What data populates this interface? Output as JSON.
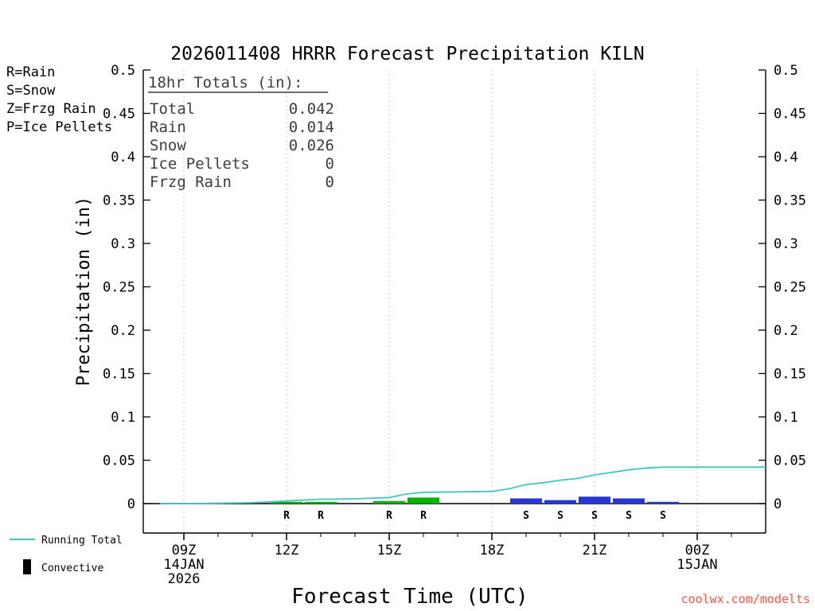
{
  "title": "2026011408 HRRR Forecast Precipitation KILN",
  "legend": {
    "rain": {
      "label": "R=Rain",
      "color": "#00b400"
    },
    "snow": {
      "label": "S=Snow",
      "color": "#2222ee"
    },
    "frzg_rain": {
      "label": "Z=Frzg Rain",
      "color": "#ff9900"
    },
    "ice_pellets": {
      "label": "P=Ice Pellets",
      "color": "#ee00aa"
    }
  },
  "totals_box": {
    "heading": " 18hr Totals (in):",
    "rows": [
      {
        "label": "Total",
        "value": "0.042"
      },
      {
        "label": "Rain",
        "value": "0.014"
      },
      {
        "label": "Snow",
        "value": "0.026"
      },
      {
        "label": "Ice Pellets",
        "value": "0"
      },
      {
        "label": "Frzg Rain",
        "value": "0"
      }
    ]
  },
  "axes": {
    "ylabel": "Precipitation (in)",
    "xlabel": "Forecast Time (UTC)",
    "yticks": [
      {
        "value": 0,
        "label": "0"
      },
      {
        "value": 0.05,
        "label": "0.05"
      },
      {
        "value": 0.1,
        "label": "0.1"
      },
      {
        "value": 0.15,
        "label": "0.15"
      },
      {
        "value": 0.2,
        "label": "0.2"
      },
      {
        "value": 0.25,
        "label": "0.25"
      },
      {
        "value": 0.3,
        "label": "0.3"
      },
      {
        "value": 0.35,
        "label": "0.35"
      },
      {
        "value": 0.4,
        "label": "0.4"
      },
      {
        "value": 0.45,
        "label": "0.45"
      },
      {
        "value": 0.5,
        "label": "0.5"
      }
    ],
    "xticks": [
      {
        "hour": 9,
        "label": "09Z",
        "sub": [
          "14JAN",
          "2026"
        ]
      },
      {
        "hour": 12,
        "label": "12Z",
        "sub": []
      },
      {
        "hour": 15,
        "label": "15Z",
        "sub": []
      },
      {
        "hour": 18,
        "label": "18Z",
        "sub": []
      },
      {
        "hour": 21,
        "label": "21Z",
        "sub": []
      },
      {
        "hour": 24,
        "label": "00Z",
        "sub": [
          "15JAN"
        ]
      }
    ]
  },
  "bottom_legend": {
    "running_total": "Running Total",
    "convective": "Convective"
  },
  "watermark": "coolwx.com/modelts",
  "chart_data": {
    "type": "bar",
    "title": "2026011408 HRRR Forecast Precipitation KILN",
    "xlabel": "Forecast Time (UTC)",
    "ylabel": "Precipitation (in)",
    "ylim": [
      0,
      0.5
    ],
    "x_axis": {
      "start_hour": 8,
      "end_hour": 26,
      "tick_hours": [
        9,
        12,
        15,
        18,
        21,
        24
      ],
      "tick_labels": [
        "09Z",
        "12Z",
        "15Z",
        "18Z",
        "21Z",
        "00Z"
      ]
    },
    "grid": "vertical-dotted",
    "legend_position": "top-left",
    "series": [
      {
        "name": "Rain (convective)",
        "type": "bar",
        "marker": "R",
        "color": "#00b400",
        "points": [
          {
            "hour": 12,
            "value": 0.002
          },
          {
            "hour": 13,
            "value": 0.002
          },
          {
            "hour": 15,
            "value": 0.003
          },
          {
            "hour": 16,
            "value": 0.007
          }
        ]
      },
      {
        "name": "Snow (convective)",
        "type": "bar",
        "marker": "S",
        "color": "#2636d8",
        "points": [
          {
            "hour": 19,
            "value": 0.006
          },
          {
            "hour": 20,
            "value": 0.004
          },
          {
            "hour": 21,
            "value": 0.008
          },
          {
            "hour": 22,
            "value": 0.006
          },
          {
            "hour": 23,
            "value": 0.002
          }
        ]
      },
      {
        "name": "Running Total",
        "type": "line",
        "color": "#3fc6c6",
        "points": [
          [
            8.3,
            0
          ],
          [
            9,
            0
          ],
          [
            10,
            0.0005
          ],
          [
            11,
            0.001
          ],
          [
            11.5,
            0.002
          ],
          [
            12,
            0.003
          ],
          [
            12.5,
            0.004
          ],
          [
            13,
            0.005
          ],
          [
            14,
            0.0055
          ],
          [
            15,
            0.007
          ],
          [
            15.5,
            0.011
          ],
          [
            16,
            0.013
          ],
          [
            17,
            0.0135
          ],
          [
            18,
            0.014
          ],
          [
            18.5,
            0.017
          ],
          [
            19,
            0.022
          ],
          [
            19.5,
            0.024
          ],
          [
            20,
            0.027
          ],
          [
            20.5,
            0.029
          ],
          [
            21,
            0.033
          ],
          [
            21.5,
            0.036
          ],
          [
            22,
            0.039
          ],
          [
            22.5,
            0.041
          ],
          [
            23,
            0.042
          ],
          [
            24,
            0.042
          ],
          [
            25,
            0.042
          ],
          [
            26,
            0.042
          ]
        ]
      }
    ]
  }
}
